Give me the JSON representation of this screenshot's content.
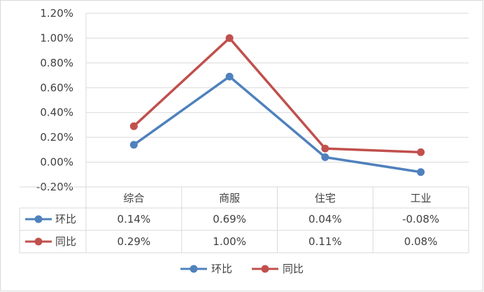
{
  "chart_data": {
    "type": "line",
    "categories": [
      "综合",
      "商服",
      "住宅",
      "工业"
    ],
    "series": [
      {
        "name": "环比",
        "values": [
          0.14,
          0.69,
          0.04,
          -0.08
        ],
        "color": "#4F81BD"
      },
      {
        "name": "同比",
        "values": [
          0.29,
          1.0,
          0.11,
          0.08
        ],
        "color": "#C0504D"
      }
    ],
    "table_values": [
      [
        "0.14%",
        "0.69%",
        "0.04%",
        "-0.08%"
      ],
      [
        "0.29%",
        "1.00%",
        "0.11%",
        "0.08%"
      ]
    ],
    "y_ticks": [
      -0.2,
      0.0,
      0.2,
      0.4,
      0.6,
      0.8,
      1.0,
      1.2
    ],
    "y_tick_labels": [
      "-0.20%",
      "0.00%",
      "0.20%",
      "0.40%",
      "0.60%",
      "0.80%",
      "1.00%",
      "1.20%"
    ],
    "ylim": [
      -0.2,
      1.2
    ],
    "grid": true,
    "legend": "bottom",
    "title": "",
    "xlabel": "",
    "ylabel": ""
  }
}
